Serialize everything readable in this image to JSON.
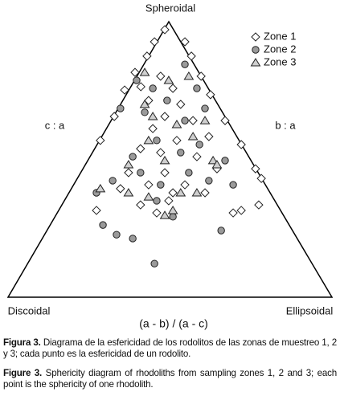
{
  "chart_data": {
    "type": "ternary",
    "title": "Spheroidal",
    "left_label": "c : a",
    "right_label": "b : a",
    "bottom_left_label": "Discoidal",
    "bottom_right_label": "Ellipsoidal",
    "x_label": "(a - b) / (a - c)",
    "xlim": [
      0,
      100
    ],
    "ylim": [
      0,
      100
    ],
    "legend": "upper right",
    "series": [
      {
        "name": "Zone 1",
        "marker": "diamond",
        "color": "#ffffff",
        "x": [
          48.4,
          45.2,
          42.9,
          39.2,
          36.0,
          32.8,
          28.5,
          54.6,
          56.6,
          59.6,
          62.5,
          67.0,
          72.0,
          76.4,
          78.2,
          77.4,
          41,
          47.1,
          50.9,
          43.4,
          53.3,
          48.4,
          44.7,
          57.1,
          62,
          52.1,
          40.9,
          47.1,
          58.3,
          64.5,
          37.2,
          48.4,
          54.6,
          43.4,
          27.3,
          34.7,
          49.6,
          45.9,
          60.8,
          72,
          69.5,
          40.9,
          50.9
        ],
        "values": [
          97.1,
          92.7,
          87.5,
          81.6,
          75.2,
          65.6,
          56.9,
          92.7,
          87.5,
          80.2,
          73.5,
          64.1,
          55.4,
          46.6,
          43.1,
          33.5,
          76.4,
          80.2,
          75.8,
          71.4,
          70,
          65.6,
          61.2,
          64.1,
          58.3,
          56.9,
          53.9,
          52.5,
          51,
          46.6,
          45.2,
          45.2,
          40.8,
          40.8,
          31.5,
          39.4,
          35,
          30.6,
          37.9,
          31.5,
          30.6,
          33.5,
          37.9
        ]
      },
      {
        "name": "Zone 2",
        "marker": "circle",
        "color": "#9a9a9a",
        "x": [
          34.7,
          39.7,
          44.7,
          54.6,
          58.3,
          49.1,
          42.2,
          54.6,
          60.8,
          45.9,
          38.5,
          53.3,
          59.1,
          67,
          40.9,
          32.3,
          47.1,
          55.8,
          62,
          45.9,
          27.3,
          29.3,
          33.5,
          38.5,
          65.8,
          69.5,
          45.2,
          50.9
        ],
        "values": [
          68.5,
          78.7,
          75.8,
          84.5,
          75.8,
          71.4,
          67.1,
          64.1,
          68.5,
          56.9,
          51,
          52.5,
          55.4,
          49.6,
          45.2,
          42.3,
          40.8,
          45.2,
          42.3,
          35,
          37.9,
          26.2,
          22.7,
          21.3,
          24.2,
          40.8,
          12.2,
          29.2
        ]
      },
      {
        "name": "Zone 3",
        "marker": "triangle",
        "color": "#cfcfcf",
        "x": [
          42.2,
          49.6,
          55.8,
          42.2,
          44.7,
          52.1,
          60.8,
          57.1,
          43.4,
          48.4,
          63.3,
          37.2,
          28.5,
          43.4,
          53.3,
          58.3,
          48.4,
          50.9,
          37.2,
          64.5
        ],
        "values": [
          81.6,
          78.7,
          80.2,
          70,
          65.6,
          62.7,
          64.1,
          58.3,
          56.9,
          49.6,
          49.6,
          48.1,
          39.4,
          36.4,
          37.9,
          37.9,
          29.7,
          31.5,
          37.9,
          48.1
        ]
      }
    ]
  },
  "caption": {
    "es_label": "Figura 3.",
    "es_text": "Diagrama de la esfericidad de los rodolitos de las zonas de muestreo 1, 2 y 3; cada punto es la esfericidad de un rodolito.",
    "en_label": "Figure 3.",
    "en_text": "Sphericity diagram of rhodoliths from sampling zones 1, 2 and 3; each point is the sphericity of one rhodolith."
  }
}
